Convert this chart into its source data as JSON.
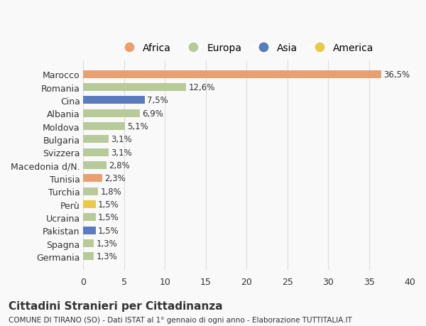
{
  "countries": [
    "Germania",
    "Spagna",
    "Pakistan",
    "Ucraina",
    "Perù",
    "Turchia",
    "Tunisia",
    "Macedonia d/N.",
    "Svizzera",
    "Bulgaria",
    "Moldova",
    "Albania",
    "Cina",
    "Romania",
    "Marocco"
  ],
  "values": [
    1.3,
    1.3,
    1.5,
    1.5,
    1.5,
    1.8,
    2.3,
    2.8,
    3.1,
    3.1,
    5.1,
    6.9,
    7.5,
    12.6,
    36.5
  ],
  "labels": [
    "1,3%",
    "1,3%",
    "1,5%",
    "1,5%",
    "1,5%",
    "1,8%",
    "2,3%",
    "2,8%",
    "3,1%",
    "3,1%",
    "5,1%",
    "6,9%",
    "7,5%",
    "12,6%",
    "36,5%"
  ],
  "colors": [
    "#b8c99a",
    "#b8c99a",
    "#5b7bbf",
    "#b8c99a",
    "#e8c94a",
    "#b8c99a",
    "#e8a070",
    "#b8c99a",
    "#b8c99a",
    "#b8c99a",
    "#b8c99a",
    "#b8c99a",
    "#5b7bbf",
    "#b8c99a",
    "#e8a070"
  ],
  "legend_labels": [
    "Africa",
    "Europa",
    "Asia",
    "America"
  ],
  "legend_colors": [
    "#e8a070",
    "#b8c99a",
    "#5b7bbf",
    "#e8c94a"
  ],
  "title": "Cittadini Stranieri per Cittadinanza",
  "subtitle": "COMUNE DI TIRANO (SO) - Dati ISTAT al 1° gennaio di ogni anno - Elaborazione TUTTITALIA.IT",
  "xlim": [
    0,
    40
  ],
  "xticks": [
    0,
    5,
    10,
    15,
    20,
    25,
    30,
    35,
    40
  ],
  "background_color": "#f9f9f9",
  "grid_color": "#dddddd",
  "text_color": "#333333",
  "africa_color": "#e8a070",
  "europa_color": "#b8c99a",
  "asia_color": "#5b7bbf",
  "america_color": "#e8c94a"
}
